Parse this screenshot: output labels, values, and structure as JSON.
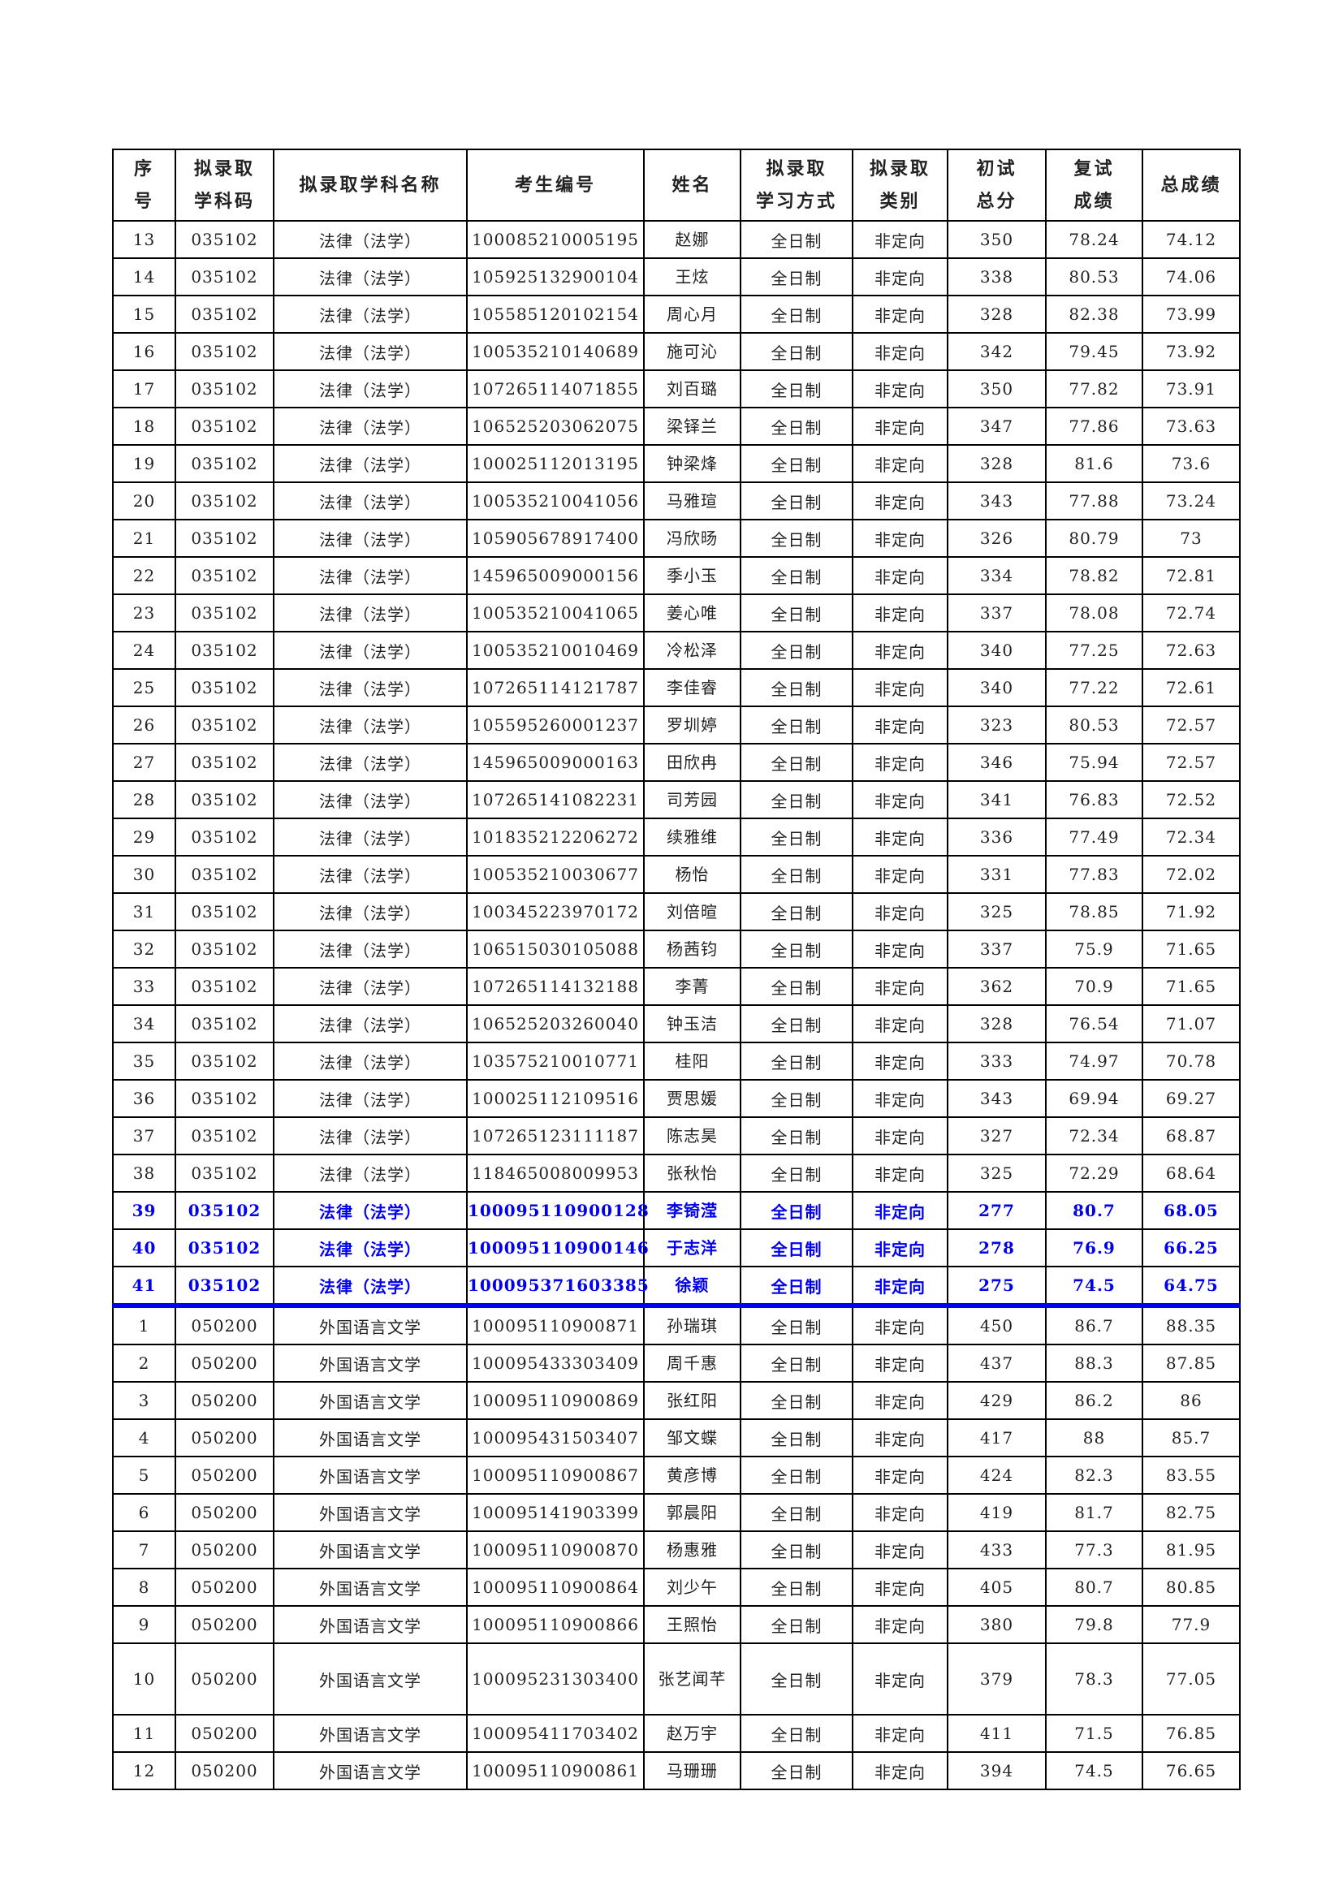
{
  "table": {
    "headers": [
      "序\n号",
      "拟录取\n学科码",
      "拟录取学科名称",
      "考生编号",
      "姓名",
      "拟录取\n学习方式",
      "拟录取\n类别",
      "初试\n总分",
      "复试\n成绩",
      "总成绩"
    ],
    "highlight_color": "#0000ee",
    "rows": [
      [
        "13",
        "035102",
        "法律（法学）",
        "100085210005195",
        "赵娜",
        "全日制",
        "非定向",
        "350",
        "78.24",
        "74.12"
      ],
      [
        "14",
        "035102",
        "法律（法学）",
        "105925132900104",
        "王炫",
        "全日制",
        "非定向",
        "338",
        "80.53",
        "74.06"
      ],
      [
        "15",
        "035102",
        "法律（法学）",
        "105585120102154",
        "周心月",
        "全日制",
        "非定向",
        "328",
        "82.38",
        "73.99"
      ],
      [
        "16",
        "035102",
        "法律（法学）",
        "100535210140689",
        "施可沁",
        "全日制",
        "非定向",
        "342",
        "79.45",
        "73.92"
      ],
      [
        "17",
        "035102",
        "法律（法学）",
        "107265114071855",
        "刘百璐",
        "全日制",
        "非定向",
        "350",
        "77.82",
        "73.91"
      ],
      [
        "18",
        "035102",
        "法律（法学）",
        "106525203062075",
        "梁铎兰",
        "全日制",
        "非定向",
        "347",
        "77.86",
        "73.63"
      ],
      [
        "19",
        "035102",
        "法律（法学）",
        "100025112013195",
        "钟梁烽",
        "全日制",
        "非定向",
        "328",
        "81.6",
        "73.6"
      ],
      [
        "20",
        "035102",
        "法律（法学）",
        "100535210041056",
        "马雅瑄",
        "全日制",
        "非定向",
        "343",
        "77.88",
        "73.24"
      ],
      [
        "21",
        "035102",
        "法律（法学）",
        "105905678917400",
        "冯欣旸",
        "全日制",
        "非定向",
        "326",
        "80.79",
        "73"
      ],
      [
        "22",
        "035102",
        "法律（法学）",
        "145965009000156",
        "季小玉",
        "全日制",
        "非定向",
        "334",
        "78.82",
        "72.81"
      ],
      [
        "23",
        "035102",
        "法律（法学）",
        "100535210041065",
        "姜心唯",
        "全日制",
        "非定向",
        "337",
        "78.08",
        "72.74"
      ],
      [
        "24",
        "035102",
        "法律（法学）",
        "100535210010469",
        "冷松泽",
        "全日制",
        "非定向",
        "340",
        "77.25",
        "72.63"
      ],
      [
        "25",
        "035102",
        "法律（法学）",
        "107265114121787",
        "李佳睿",
        "全日制",
        "非定向",
        "340",
        "77.22",
        "72.61"
      ],
      [
        "26",
        "035102",
        "法律（法学）",
        "105595260001237",
        "罗圳婷",
        "全日制",
        "非定向",
        "323",
        "80.53",
        "72.57"
      ],
      [
        "27",
        "035102",
        "法律（法学）",
        "145965009000163",
        "田欣冉",
        "全日制",
        "非定向",
        "346",
        "75.94",
        "72.57"
      ],
      [
        "28",
        "035102",
        "法律（法学）",
        "107265141082231",
        "司芳园",
        "全日制",
        "非定向",
        "341",
        "76.83",
        "72.52"
      ],
      [
        "29",
        "035102",
        "法律（法学）",
        "101835212206272",
        "续雅维",
        "全日制",
        "非定向",
        "336",
        "77.49",
        "72.34"
      ],
      [
        "30",
        "035102",
        "法律（法学）",
        "100535210030677",
        "杨怡",
        "全日制",
        "非定向",
        "331",
        "77.83",
        "72.02"
      ],
      [
        "31",
        "035102",
        "法律（法学）",
        "100345223970172",
        "刘倍暄",
        "全日制",
        "非定向",
        "325",
        "78.85",
        "71.92"
      ],
      [
        "32",
        "035102",
        "法律（法学）",
        "106515030105088",
        "杨茜钧",
        "全日制",
        "非定向",
        "337",
        "75.9",
        "71.65"
      ],
      [
        "33",
        "035102",
        "法律（法学）",
        "107265114132188",
        "李菁",
        "全日制",
        "非定向",
        "362",
        "70.9",
        "71.65"
      ],
      [
        "34",
        "035102",
        "法律（法学）",
        "106525203260040",
        "钟玉洁",
        "全日制",
        "非定向",
        "328",
        "76.54",
        "71.07"
      ],
      [
        "35",
        "035102",
        "法律（法学）",
        "103575210010771",
        "桂阳",
        "全日制",
        "非定向",
        "333",
        "74.97",
        "70.78"
      ],
      [
        "36",
        "035102",
        "法律（法学）",
        "100025112109516",
        "贾思媛",
        "全日制",
        "非定向",
        "343",
        "69.94",
        "69.27"
      ],
      [
        "37",
        "035102",
        "法律（法学）",
        "107265123111187",
        "陈志昊",
        "全日制",
        "非定向",
        "327",
        "72.34",
        "68.87"
      ],
      [
        "38",
        "035102",
        "法律（法学）",
        "118465008009953",
        "张秋怡",
        "全日制",
        "非定向",
        "325",
        "72.29",
        "68.64"
      ],
      [
        "39",
        "035102",
        "法律（法学）",
        "100095110900128",
        "李锜滢",
        "全日制",
        "非定向",
        "277",
        "80.7",
        "68.05",
        "hl"
      ],
      [
        "40",
        "035102",
        "法律（法学）",
        "100095110900146",
        "于志洋",
        "全日制",
        "非定向",
        "278",
        "76.9",
        "66.25",
        "hl"
      ],
      [
        "41",
        "035102",
        "法律（法学）",
        "100095371603385",
        "徐颖",
        "全日制",
        "非定向",
        "275",
        "74.5",
        "64.75",
        "hl sep"
      ],
      [
        "1",
        "050200",
        "外国语言文学",
        "100095110900871",
        "孙瑞琪",
        "全日制",
        "非定向",
        "450",
        "86.7",
        "88.35"
      ],
      [
        "2",
        "050200",
        "外国语言文学",
        "100095433303409",
        "周千惠",
        "全日制",
        "非定向",
        "437",
        "88.3",
        "87.85"
      ],
      [
        "3",
        "050200",
        "外国语言文学",
        "100095110900869",
        "张红阳",
        "全日制",
        "非定向",
        "429",
        "86.2",
        "86"
      ],
      [
        "4",
        "050200",
        "外国语言文学",
        "100095431503407",
        "邹文蝶",
        "全日制",
        "非定向",
        "417",
        "88",
        "85.7"
      ],
      [
        "5",
        "050200",
        "外国语言文学",
        "100095110900867",
        "黄彦博",
        "全日制",
        "非定向",
        "424",
        "82.3",
        "83.55"
      ],
      [
        "6",
        "050200",
        "外国语言文学",
        "100095141903399",
        "郭晨阳",
        "全日制",
        "非定向",
        "419",
        "81.7",
        "82.75"
      ],
      [
        "7",
        "050200",
        "外国语言文学",
        "100095110900870",
        "杨惠雅",
        "全日制",
        "非定向",
        "433",
        "77.3",
        "81.95"
      ],
      [
        "8",
        "050200",
        "外国语言文学",
        "100095110900864",
        "刘少午",
        "全日制",
        "非定向",
        "405",
        "80.7",
        "80.85"
      ],
      [
        "9",
        "050200",
        "外国语言文学",
        "100095110900866",
        "王照怡",
        "全日制",
        "非定向",
        "380",
        "79.8",
        "77.9"
      ],
      [
        "10",
        "050200",
        "外国语言文学",
        "100095231303400",
        "张艺闻芊",
        "全日制",
        "非定向",
        "379",
        "78.3",
        "77.05",
        "tall"
      ],
      [
        "11",
        "050200",
        "外国语言文学",
        "100095411703402",
        "赵万宇",
        "全日制",
        "非定向",
        "411",
        "71.5",
        "76.85"
      ],
      [
        "12",
        "050200",
        "外国语言文学",
        "100095110900861",
        "马珊珊",
        "全日制",
        "非定向",
        "394",
        "74.5",
        "76.65"
      ]
    ]
  }
}
